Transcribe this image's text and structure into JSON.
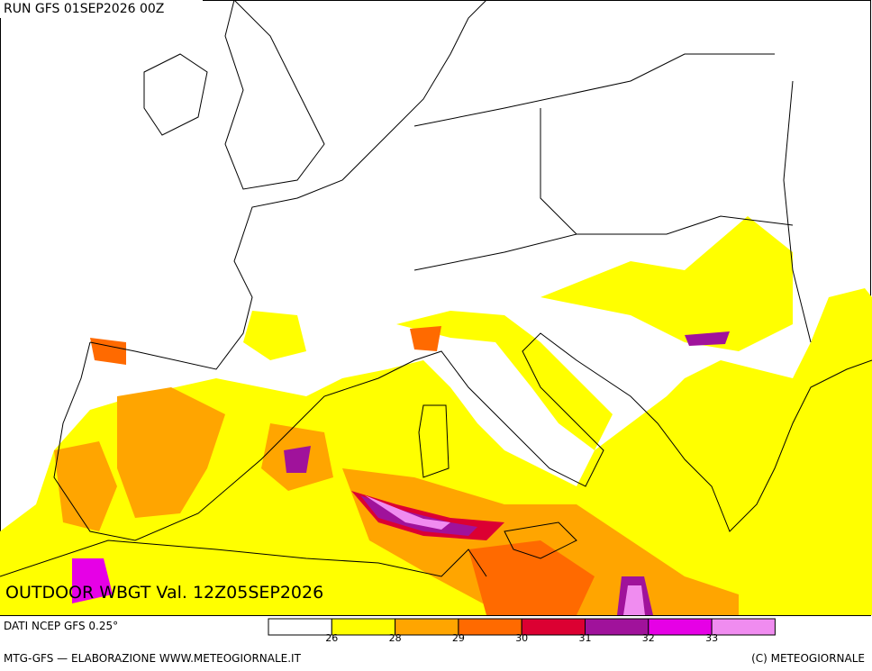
{
  "header": {
    "run": "RUN GFS 01SEP2026 00Z"
  },
  "map": {
    "title": "OUTDOOR WBGT Val. 12Z05SEP2026"
  },
  "legend": {
    "colors": [
      "#ffffff",
      "#ffff00",
      "#ffa500",
      "#ff6a00",
      "#dc0032",
      "#a0129b",
      "#e600e6",
      "#f08cf0"
    ],
    "ticks": [
      26,
      28,
      29,
      30,
      31,
      32,
      33
    ]
  },
  "footer": {
    "source": "DATI NCEP GFS 0.25°",
    "credit": "MTG-GFS — ELABORAZIONE WWW.METEOGIORNALE.IT",
    "copyright": "(C) METEOGIORNALE"
  }
}
